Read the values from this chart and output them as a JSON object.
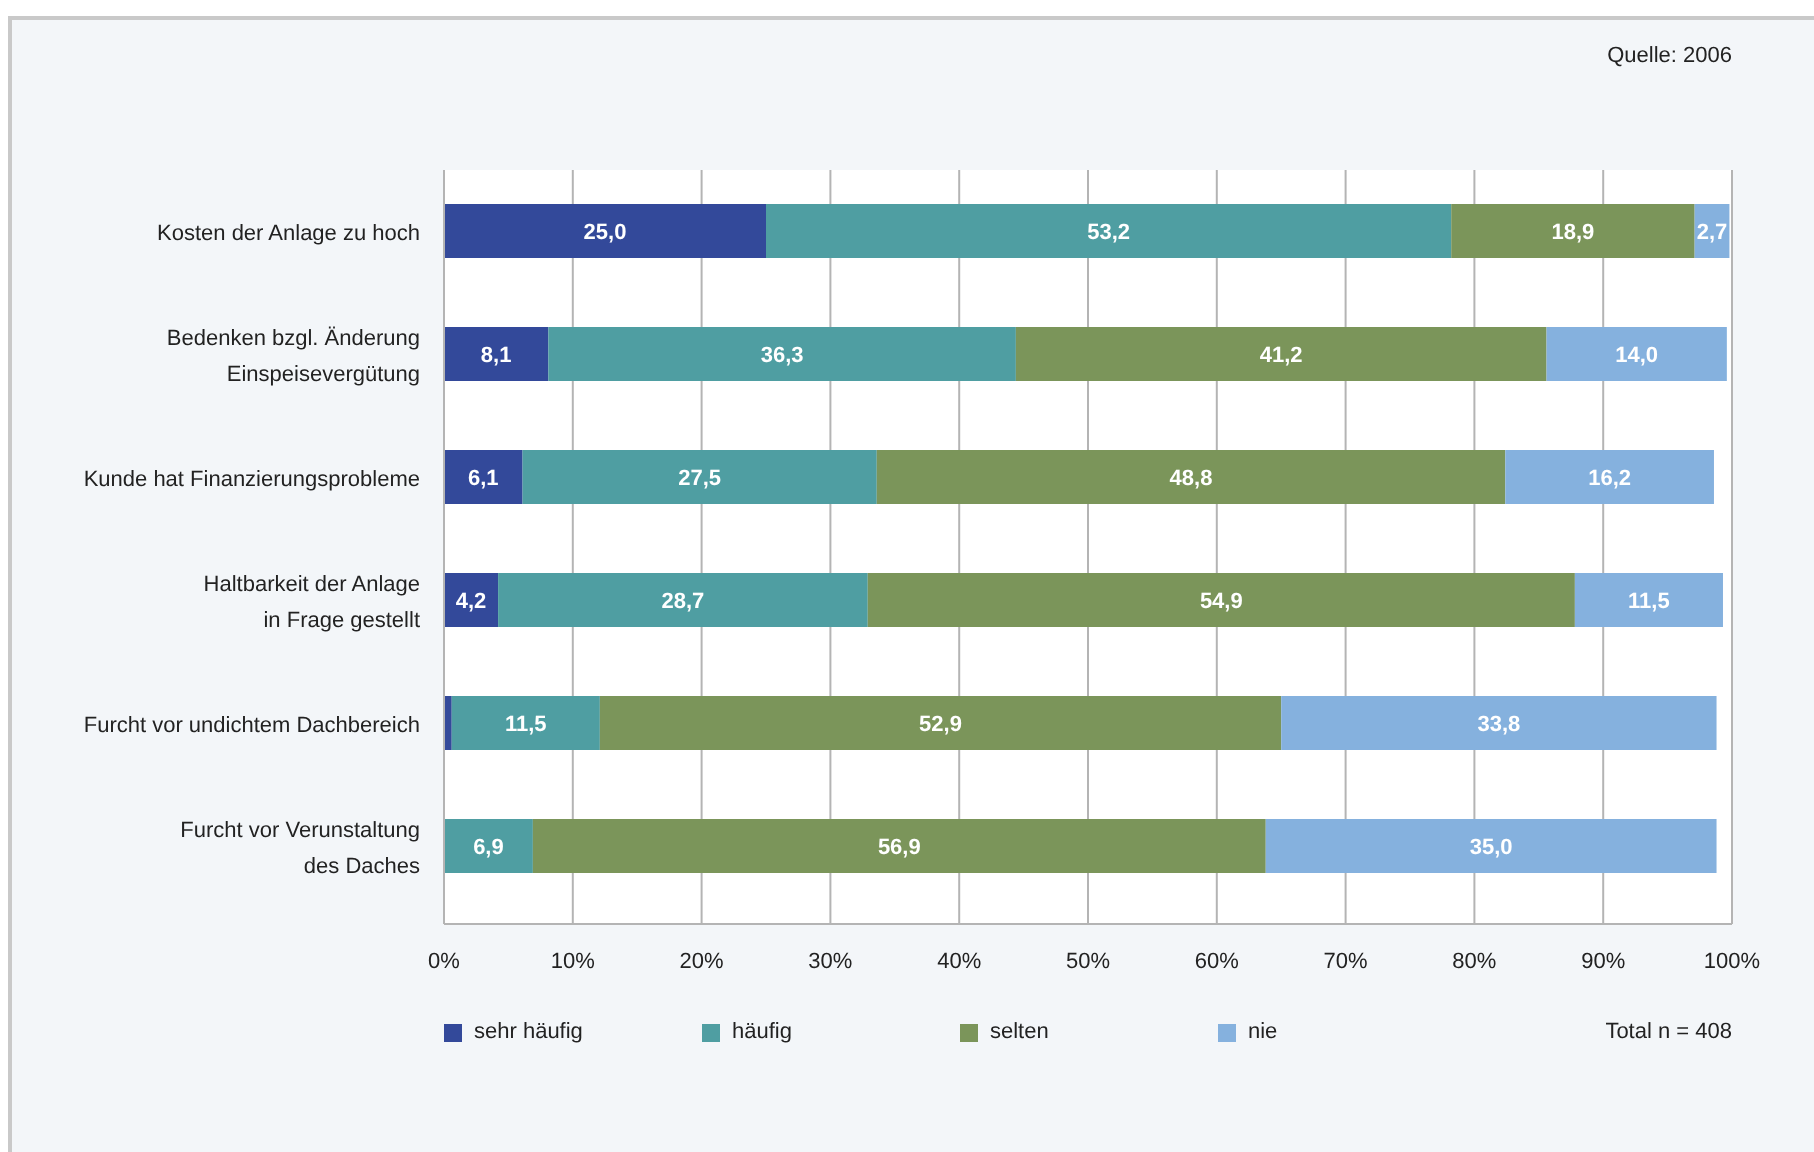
{
  "chart_data": {
    "type": "bar",
    "orientation": "horizontal",
    "stacked": true,
    "categories": [
      "Kosten der Anlage zu hoch",
      "Bedenken bzgl. Änderung\nEinspeisevergütung",
      "Kunde hat Finanzierungsprobleme",
      "Haltbarkeit der Anlage\nin Frage gestellt",
      "Furcht vor undichtem Dachbereich",
      "Furcht vor Verunstaltung\ndes Daches"
    ],
    "series": [
      {
        "name": "sehr häufig",
        "color": "#33499a",
        "values": [
          25.0,
          8.1,
          6.1,
          4.2,
          0.6,
          null
        ],
        "value_labels": [
          "25,0",
          "8,1",
          "6,1",
          "4,2",
          null,
          null
        ]
      },
      {
        "name": "häufig",
        "color": "#4f9ea2",
        "values": [
          53.2,
          36.3,
          27.5,
          28.7,
          11.5,
          6.9
        ],
        "value_labels": [
          "53,2",
          "36,3",
          "27,5",
          "28,7",
          "11,5",
          "6,9"
        ]
      },
      {
        "name": "selten",
        "color": "#7b955a",
        "values": [
          18.9,
          41.2,
          48.8,
          54.9,
          52.9,
          56.9
        ],
        "value_labels": [
          "18,9",
          "41,2",
          "48,8",
          "54,9",
          "52,9",
          "56,9"
        ]
      },
      {
        "name": "nie",
        "color": "#85b1de",
        "values": [
          2.7,
          14.0,
          16.2,
          11.5,
          33.8,
          35.0
        ],
        "value_labels": [
          "2,7",
          "14,0",
          "16,2",
          "11,5",
          "33,8",
          "35,0"
        ]
      }
    ],
    "xlim": [
      0,
      100
    ],
    "xticks": [
      {
        "value": 0,
        "label": "0%"
      },
      {
        "value": 10,
        "label": "10%"
      },
      {
        "value": 20,
        "label": "20%"
      },
      {
        "value": 30,
        "label": "30%"
      },
      {
        "value": 40,
        "label": "40%"
      },
      {
        "value": 50,
        "label": "50%"
      },
      {
        "value": 60,
        "label": "60%"
      },
      {
        "value": 70,
        "label": "70%"
      },
      {
        "value": 80,
        "label": "80%"
      },
      {
        "value": 90,
        "label": "90%"
      },
      {
        "value": 100,
        "label": "100%"
      }
    ],
    "grid": "x",
    "legend": "bottom",
    "annotations": [
      "Quelle: 2006",
      "Total n = 408"
    ]
  }
}
